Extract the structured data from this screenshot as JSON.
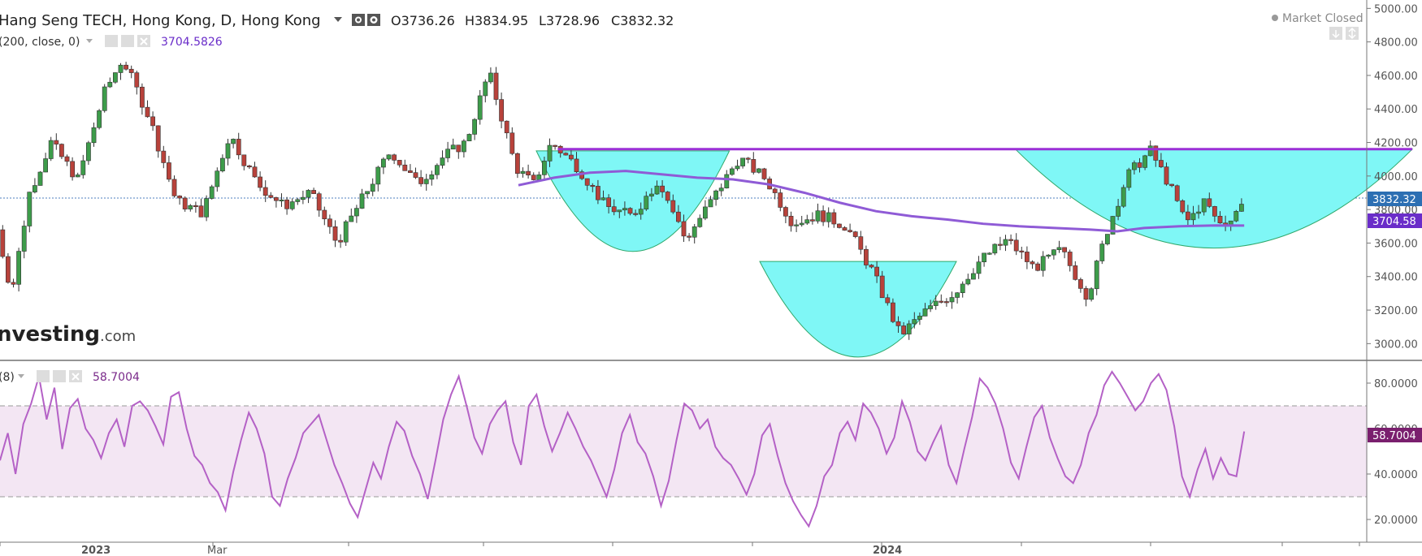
{
  "header": {
    "symbol_title": "Hang Seng TECH, Hong Kong, D, Hong Kong",
    "open_prefix": "O",
    "open": "3736.26",
    "high_prefix": "H",
    "high": "3834.95",
    "low_prefix": "L",
    "low": "3728.96",
    "close_prefix": "C",
    "close": "3832.32",
    "market_status": "Market Closed"
  },
  "ma_legend": {
    "label": "(200, close, 0)",
    "value": "3704.5826"
  },
  "rsi_legend": {
    "label": "(8)",
    "value": "58.7004"
  },
  "watermark": {
    "brand": "nvesting",
    "suffix": ".com"
  },
  "price_badges": {
    "last": "3832.32",
    "ma": "3704.58"
  },
  "rsi_badge": "58.7004",
  "colors": {
    "up_candle": "#3d9c4a",
    "down_candle": "#b8423b",
    "ma_line": "#8f5bd6",
    "resistance_line": "#9b30d6",
    "cup_fill": "#7ff7f6",
    "cup_edge": "#2fa86b",
    "rsi_line": "#b461c6",
    "rsi_band": "#f3e6f3"
  },
  "chart_data": {
    "type": "candlestick",
    "price_axis": {
      "ticks": [
        "5000.00",
        "4800.00",
        "4600.00",
        "4400.00",
        "4200.00",
        "4000.00",
        "3800.00",
        "3600.00",
        "3400.00",
        "3200.00",
        "3000.00"
      ],
      "range": [
        2900,
        5050
      ]
    },
    "rsi_axis": {
      "ticks": [
        "80.0000",
        "60.0000",
        "40.0000",
        "20.0000"
      ],
      "range": [
        10,
        90
      ],
      "band": [
        30,
        70
      ]
    },
    "time_axis": {
      "labels": [
        {
          "text": "2023",
          "index": 0
        },
        {
          "text": "Mar",
          "index": 1
        },
        {
          "text": "2024",
          "index": 2
        }
      ]
    },
    "price_waypoints": [
      [
        0,
        3680
      ],
      [
        8,
        3300
      ],
      [
        18,
        3900
      ],
      [
        30,
        4200
      ],
      [
        45,
        3980
      ],
      [
        60,
        4500
      ],
      [
        70,
        4700
      ],
      [
        85,
        4350
      ],
      [
        100,
        3850
      ],
      [
        115,
        3780
      ],
      [
        130,
        4250
      ],
      [
        145,
        3960
      ],
      [
        160,
        3820
      ],
      [
        175,
        3900
      ],
      [
        190,
        3600
      ],
      [
        205,
        3880
      ],
      [
        220,
        4150
      ],
      [
        235,
        3950
      ],
      [
        250,
        4120
      ],
      [
        262,
        4200
      ],
      [
        275,
        4620
      ],
      [
        290,
        4050
      ],
      [
        300,
        3950
      ],
      [
        310,
        4200
      ],
      [
        325,
        4050
      ],
      [
        340,
        3820
      ],
      [
        355,
        3760
      ],
      [
        370,
        3980
      ],
      [
        385,
        3620
      ],
      [
        400,
        3860
      ],
      [
        415,
        4110
      ],
      [
        430,
        3980
      ],
      [
        445,
        3720
      ],
      [
        460,
        3770
      ],
      [
        475,
        3700
      ],
      [
        490,
        3420
      ],
      [
        505,
        3050
      ],
      [
        520,
        3200
      ],
      [
        535,
        3300
      ],
      [
        550,
        3500
      ],
      [
        565,
        3620
      ],
      [
        580,
        3450
      ],
      [
        595,
        3560
      ],
      [
        610,
        3280
      ],
      [
        620,
        3650
      ],
      [
        632,
        4000
      ],
      [
        645,
        4150
      ],
      [
        655,
        3960
      ],
      [
        665,
        3720
      ],
      [
        675,
        3850
      ],
      [
        685,
        3700
      ],
      [
        696,
        3832
      ]
    ],
    "ma_waypoints": [
      [
        290,
        3945
      ],
      [
        310,
        3990
      ],
      [
        330,
        4020
      ],
      [
        350,
        4030
      ],
      [
        370,
        4010
      ],
      [
        390,
        3990
      ],
      [
        410,
        3980
      ],
      [
        430,
        3950
      ],
      [
        450,
        3900
      ],
      [
        470,
        3840
      ],
      [
        490,
        3790
      ],
      [
        510,
        3760
      ],
      [
        530,
        3740
      ],
      [
        550,
        3715
      ],
      [
        570,
        3700
      ],
      [
        590,
        3690
      ],
      [
        610,
        3680
      ],
      [
        625,
        3670
      ],
      [
        640,
        3690
      ],
      [
        660,
        3700
      ],
      [
        680,
        3705
      ],
      [
        696,
        3704.58
      ]
    ],
    "rsi_values": [
      46,
      58,
      40,
      62,
      71,
      83,
      64,
      78,
      51,
      69,
      73,
      60,
      55,
      47,
      58,
      64,
      52,
      70,
      72,
      68,
      61,
      53,
      74,
      76,
      60,
      48,
      44,
      36,
      32,
      24,
      41,
      55,
      67,
      60,
      49,
      30,
      26,
      38,
      47,
      58,
      62,
      66,
      55,
      44,
      36,
      27,
      21,
      33,
      45,
      38,
      52,
      63,
      59,
      48,
      40,
      29,
      46,
      64,
      75,
      83,
      70,
      56,
      49,
      62,
      68,
      72,
      54,
      44,
      70,
      75,
      61,
      50,
      58,
      67,
      60,
      52,
      46,
      38,
      30,
      42,
      58,
      66,
      54,
      49,
      39,
      26,
      37,
      55,
      71,
      68,
      60,
      64,
      52,
      47,
      44,
      38,
      31,
      40,
      57,
      62,
      48,
      36,
      28,
      22,
      17,
      26,
      39,
      44,
      58,
      63,
      55,
      71,
      67,
      60,
      49,
      56,
      72,
      63,
      50,
      46,
      54,
      61,
      44,
      36,
      51,
      65,
      82,
      78,
      71,
      60,
      45,
      38,
      52,
      65,
      70,
      56,
      47,
      39,
      36,
      44,
      58,
      66,
      79,
      85,
      80,
      74,
      68,
      72,
      80,
      84,
      77,
      61,
      39,
      30,
      42,
      51,
      38,
      47,
      40,
      39,
      58.7
    ],
    "annotations": {
      "resistance": {
        "from_index": 312,
        "to_index": 790,
        "price": 4160
      },
      "cups": [
        {
          "name": "cup-1",
          "from_index": 300,
          "to_index": 408,
          "top_price": 4150,
          "bottom_price": 3550
        },
        {
          "name": "cup-2",
          "from_index": 425,
          "to_index": 535,
          "top_price": 3490,
          "bottom_price": 2920
        },
        {
          "name": "cup-3",
          "from_index": 568,
          "to_index": 790,
          "top_price": 4160,
          "bottom_price": 3570
        }
      ]
    }
  }
}
